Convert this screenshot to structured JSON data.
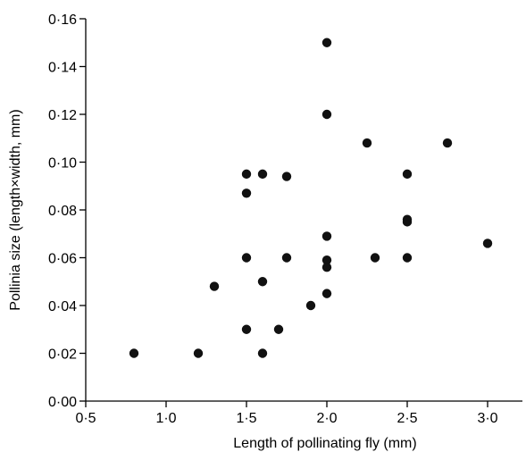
{
  "chart_data": {
    "type": "scatter",
    "title": "",
    "xlabel": "Length of pollinating fly (mm)",
    "ylabel": "Pollinia size (length×width, mm)",
    "xlim": [
      0.5,
      3.2
    ],
    "ylim": [
      0.0,
      0.16
    ],
    "x_ticks": [
      0.5,
      1.0,
      1.5,
      2.0,
      2.5,
      3.0
    ],
    "x_tick_labels": [
      "0·5",
      "1·0",
      "1·5",
      "2·0",
      "2·5",
      "3·0"
    ],
    "y_ticks": [
      0.0,
      0.02,
      0.04,
      0.06,
      0.08,
      0.1,
      0.12,
      0.14,
      0.16
    ],
    "y_tick_labels": [
      "0·00",
      "0·02",
      "0·04",
      "0·06",
      "0·08",
      "0·10",
      "0·12",
      "0·14",
      "0·16"
    ],
    "grid": false,
    "marker_color": "#111111",
    "points": [
      {
        "x": 0.8,
        "y": 0.02
      },
      {
        "x": 1.2,
        "y": 0.02
      },
      {
        "x": 1.3,
        "y": 0.048
      },
      {
        "x": 1.5,
        "y": 0.095
      },
      {
        "x": 1.5,
        "y": 0.087
      },
      {
        "x": 1.5,
        "y": 0.06
      },
      {
        "x": 1.5,
        "y": 0.03
      },
      {
        "x": 1.6,
        "y": 0.095
      },
      {
        "x": 1.6,
        "y": 0.05
      },
      {
        "x": 1.6,
        "y": 0.02
      },
      {
        "x": 1.7,
        "y": 0.03
      },
      {
        "x": 1.75,
        "y": 0.094
      },
      {
        "x": 1.75,
        "y": 0.06
      },
      {
        "x": 1.9,
        "y": 0.04
      },
      {
        "x": 2.0,
        "y": 0.15
      },
      {
        "x": 2.0,
        "y": 0.12
      },
      {
        "x": 2.0,
        "y": 0.069
      },
      {
        "x": 2.0,
        "y": 0.059
      },
      {
        "x": 2.0,
        "y": 0.056
      },
      {
        "x": 2.0,
        "y": 0.045
      },
      {
        "x": 2.25,
        "y": 0.108
      },
      {
        "x": 2.3,
        "y": 0.06
      },
      {
        "x": 2.5,
        "y": 0.095
      },
      {
        "x": 2.5,
        "y": 0.076
      },
      {
        "x": 2.5,
        "y": 0.075
      },
      {
        "x": 2.5,
        "y": 0.06
      },
      {
        "x": 2.75,
        "y": 0.108
      },
      {
        "x": 3.0,
        "y": 0.066
      }
    ]
  }
}
